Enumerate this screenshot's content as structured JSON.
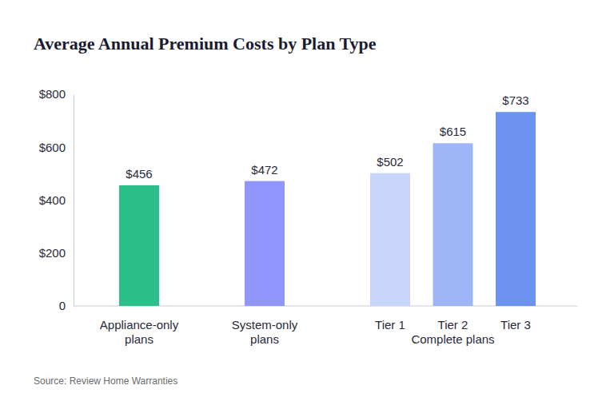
{
  "chart_data": {
    "type": "bar",
    "title": "Average Annual Premium Costs by Plan Type",
    "source": "Source: Review Home Warranties",
    "categories": [
      "Appliance-only plans",
      "System-only plans",
      "Tier 1",
      "Tier 2",
      "Tier 3"
    ],
    "category_groups": [
      {
        "label": "Complete plans",
        "categories": [
          "Tier 1",
          "Tier 2",
          "Tier 3"
        ]
      }
    ],
    "values": [
      456,
      472,
      502,
      615,
      733
    ],
    "value_labels": [
      "$456",
      "$472",
      "$502",
      "$615",
      "$733"
    ],
    "colors": [
      "#2bbf8a",
      "#9196fd",
      "#c8d5fb",
      "#9eb6f6",
      "#6b93ef"
    ],
    "data_labels": true,
    "ylim": [
      0,
      800
    ],
    "yticks": [
      0,
      {
        "value": 200,
        "label": "$200"
      },
      {
        "value": 400,
        "label": "$400"
      },
      {
        "value": 600,
        "label": "$600"
      },
      {
        "value": 800,
        "label": "$800"
      }
    ],
    "grid": false
  }
}
